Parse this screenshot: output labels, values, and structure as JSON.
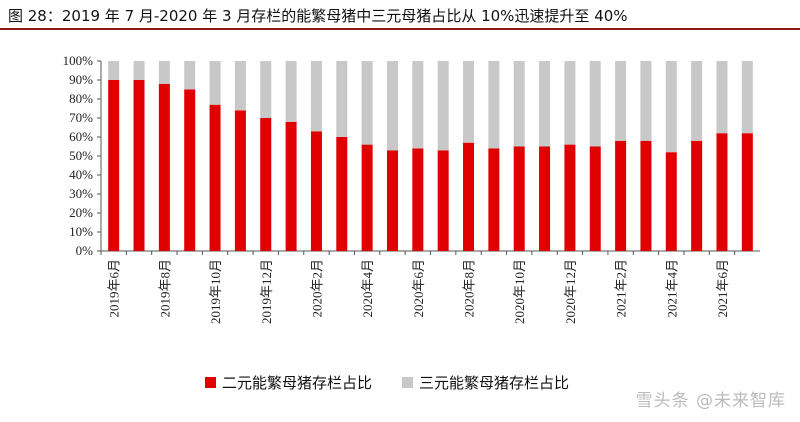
{
  "chart_title": "图 28：2019 年 7 月-2020 年 3 月存栏的能繁母猪中三元母猪占比从 10%迅速提升至 40%",
  "watermark": "雪头条 @未来智库",
  "colors": {
    "series_a": "#e00000",
    "series_b": "#c8c8c8",
    "title_rule": "#8b1a1a"
  },
  "chart_data": {
    "type": "bar",
    "stacked": true,
    "title": "图 28：2019 年 7 月-2020 年 3 月存栏的能繁母猪中三元母猪占比从 10%迅速提升至 40%",
    "xlabel": "",
    "ylabel": "",
    "ylim": [
      0,
      100
    ],
    "yticks": [
      "0%",
      "10%",
      "20%",
      "30%",
      "40%",
      "50%",
      "60%",
      "70%",
      "80%",
      "90%",
      "100%"
    ],
    "categories": [
      "2019年6月",
      "2019年7月",
      "2019年8月",
      "2019年9月",
      "2019年10月",
      "2019年11月",
      "2019年12月",
      "2020年1月",
      "2020年2月",
      "2020年3月",
      "2020年4月",
      "2020年5月",
      "2020年6月",
      "2020年7月",
      "2020年8月",
      "2020年9月",
      "2020年10月",
      "2020年11月",
      "2020年12月",
      "2021年1月",
      "2021年2月",
      "2021年3月",
      "2021年4月",
      "2021年5月",
      "2021年6月",
      "2021年7月"
    ],
    "shown_tick_labels": [
      "2019年6月",
      "2019年8月",
      "2019年10月",
      "2019年12月",
      "2020年2月",
      "2020年4月",
      "2020年6月",
      "2020年8月",
      "2020年10月",
      "2020年12月",
      "2021年2月",
      "2021年4月",
      "2021年6月"
    ],
    "legend_position": "bottom",
    "series": [
      {
        "name": "二元能繁母猪存栏占比",
        "values": [
          90,
          90,
          88,
          85,
          77,
          74,
          70,
          68,
          63,
          60,
          56,
          53,
          54,
          53,
          57,
          54,
          55,
          55,
          56,
          55,
          58,
          58,
          52,
          58,
          62,
          62
        ]
      },
      {
        "name": "三元能繁母猪存栏占比",
        "values": [
          10,
          10,
          12,
          15,
          23,
          26,
          30,
          32,
          37,
          40,
          44,
          47,
          46,
          47,
          43,
          46,
          45,
          45,
          44,
          45,
          42,
          42,
          48,
          42,
          38,
          38
        ]
      }
    ]
  }
}
